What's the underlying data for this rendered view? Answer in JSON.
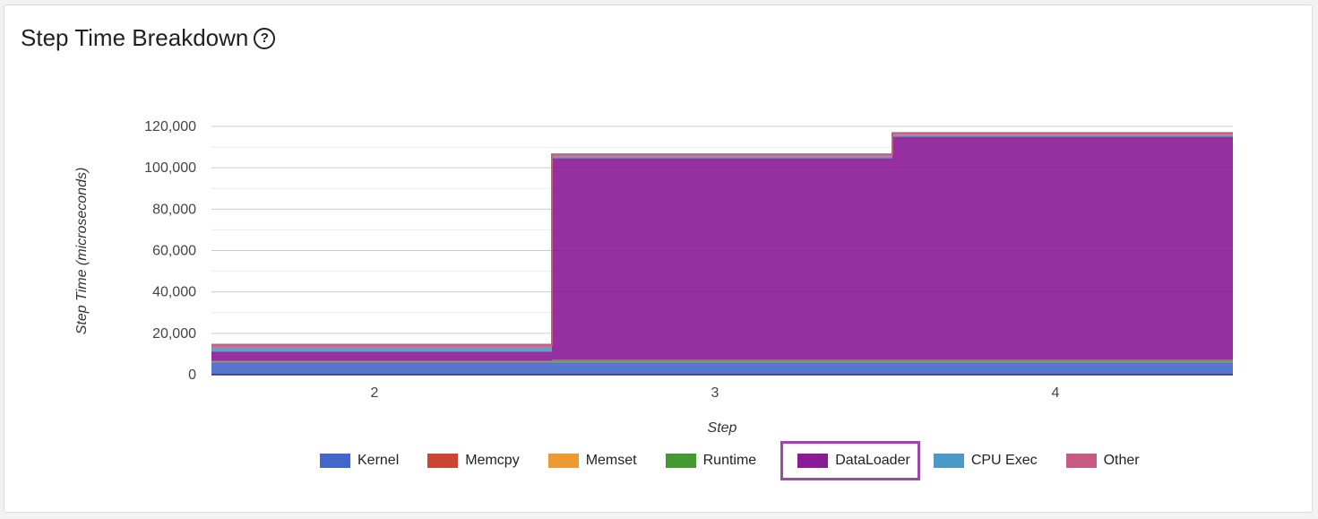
{
  "card": {
    "title": "Step Time Breakdown",
    "help_icon": "question-circle-icon",
    "help_glyph": "?"
  },
  "chart_data": {
    "type": "area",
    "title": "Step Time Breakdown",
    "xlabel": "Step",
    "ylabel": "Step Time (microseconds)",
    "categories": [
      "2",
      "3",
      "4"
    ],
    "ylim": [
      0,
      120000
    ],
    "yticks": [
      0,
      20000,
      40000,
      60000,
      80000,
      100000,
      120000
    ],
    "ytick_labels": [
      "0",
      "20,000",
      "40,000",
      "60,000",
      "80,000",
      "100,000",
      "120,000"
    ],
    "stacked": true,
    "step_style": true,
    "grid": true,
    "legend_position": "bottom",
    "highlighted_series": "DataLoader",
    "series": [
      {
        "name": "Kernel",
        "color": "#4466c8",
        "values": [
          6000,
          6000,
          6000
        ]
      },
      {
        "name": "Memcpy",
        "color": "#cc4433",
        "values": [
          300,
          300,
          300
        ]
      },
      {
        "name": "Memset",
        "color": "#ee9933",
        "values": [
          100,
          100,
          100
        ]
      },
      {
        "name": "Runtime",
        "color": "#449933",
        "values": [
          300,
          800,
          800
        ]
      },
      {
        "name": "DataLoader",
        "color": "#8b1a96",
        "values": [
          4500,
          97500,
          107800
        ]
      },
      {
        "name": "CPU Exec",
        "color": "#4a99c6",
        "values": [
          2000,
          800,
          800
        ]
      },
      {
        "name": "Other",
        "color": "#c75b84",
        "values": [
          1300,
          1000,
          1000
        ]
      }
    ]
  }
}
